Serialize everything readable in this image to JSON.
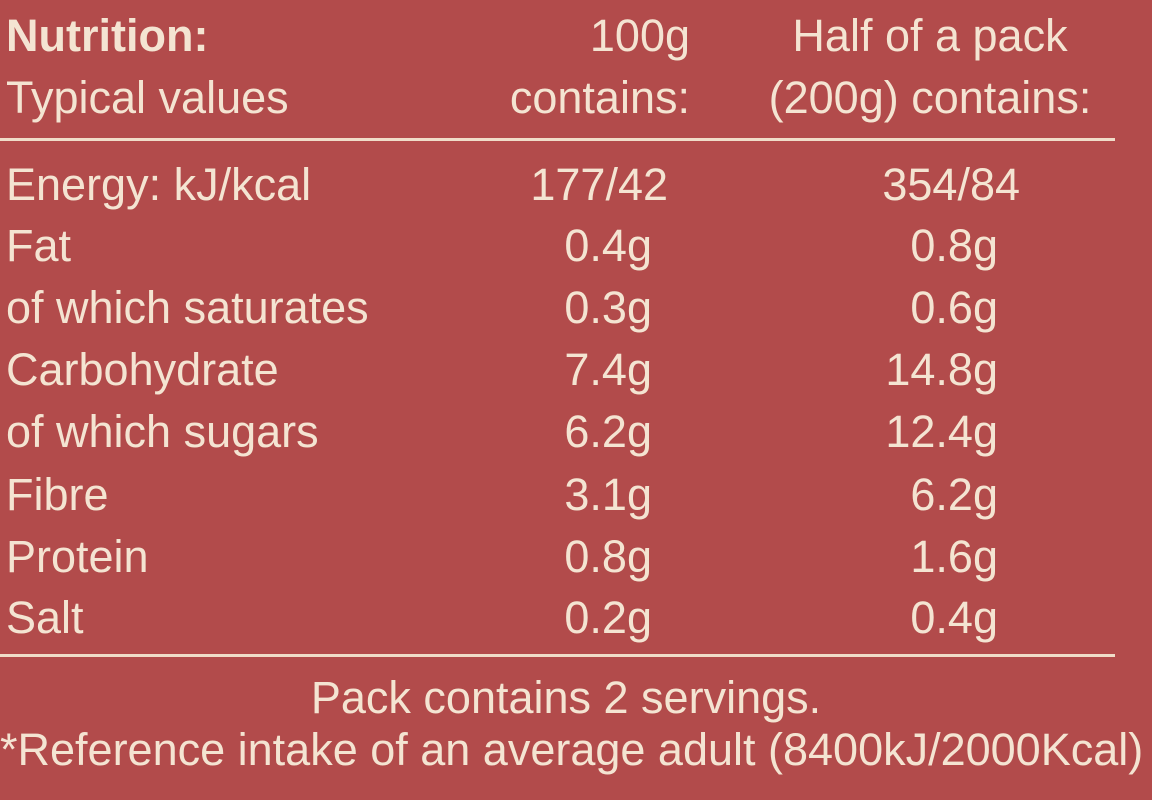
{
  "header": {
    "title": "Nutrition:",
    "subtitle": "Typical values",
    "column_1": [
      "100g",
      "contains:"
    ],
    "column_2": [
      "Half of a pack",
      "(200g) contains:"
    ]
  },
  "rows": [
    [
      "Energy: kJ/kcal",
      "177/42",
      "354/84"
    ],
    [
      "Fat",
      "0.4g",
      "0.8g"
    ],
    [
      "of which saturates",
      "0.3g",
      "0.6g"
    ],
    [
      "Carbohydrate",
      "7.4g",
      "14.8g"
    ],
    [
      "of which sugars",
      "6.2g",
      "12.4g"
    ],
    [
      "Fibre",
      "3.1g",
      "6.2g"
    ],
    [
      "Protein",
      "0.8g",
      "1.6g"
    ],
    [
      "Salt",
      "0.2g",
      "0.4g"
    ]
  ],
  "footer": [
    "Pack contains 2 servings.",
    "*Reference intake of an average adult (8400kJ/2000Kcal)"
  ]
}
